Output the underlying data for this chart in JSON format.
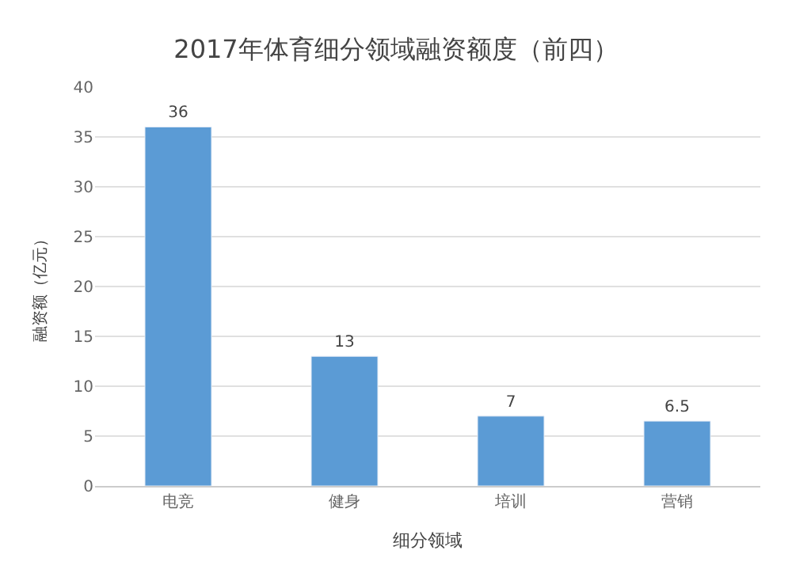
{
  "chart_data": {
    "type": "bar",
    "title": "2017年体育细分领域融资额度（前四）",
    "xlabel": "细分领域",
    "ylabel": "融资额（亿元）",
    "categories": [
      "电竞",
      "健身",
      "培训",
      "营销"
    ],
    "values": [
      36,
      13,
      7,
      6.5
    ],
    "color": "#5b9bd5",
    "ylim": [
      0,
      40
    ],
    "yticks": [
      0,
      5,
      10,
      15,
      20,
      25,
      30,
      35,
      40
    ],
    "grid": "y",
    "data_labels": true
  }
}
